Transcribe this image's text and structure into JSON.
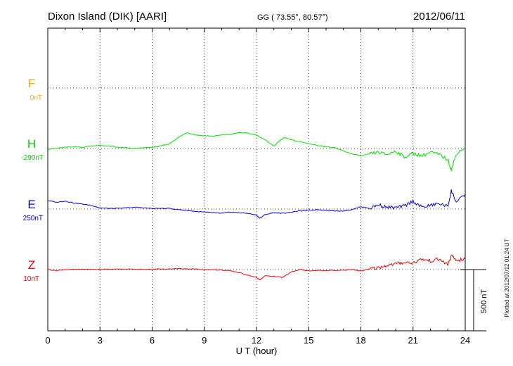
{
  "header": {
    "station": "Dixon Island (DIK)  [AARI]",
    "coords": "GG ( 73.55°,  80.57°)",
    "date": "2012/06/11"
  },
  "footer": {
    "plotted": "Plotted at 2012/07/12 01:24 UT"
  },
  "chart_data": {
    "type": "line",
    "title": "Dixon Island (DIK)  [AARI]",
    "xlabel": "U T (hour)",
    "ylabel": "",
    "xlim": [
      0,
      24
    ],
    "x_ticks": [
      "0",
      "3",
      "6",
      "9",
      "12",
      "15",
      "18",
      "21",
      "24"
    ],
    "grid": true,
    "scale_label": "500 nT",
    "series": [
      {
        "name": "F",
        "offset": "0nT",
        "color": "#ffa500",
        "points": []
      },
      {
        "name": "H",
        "offset": "-290nT",
        "color": "#00e000",
        "points": [
          [
            0,
            -5
          ],
          [
            0.5,
            0
          ],
          [
            1,
            10
          ],
          [
            1.5,
            15
          ],
          [
            2,
            10
          ],
          [
            2.5,
            20
          ],
          [
            3,
            25
          ],
          [
            3.5,
            20
          ],
          [
            4,
            10
          ],
          [
            4.5,
            5
          ],
          [
            5,
            0
          ],
          [
            5.5,
            5
          ],
          [
            6,
            10
          ],
          [
            6.5,
            20
          ],
          [
            7,
            40
          ],
          [
            7.5,
            90
          ],
          [
            8,
            130
          ],
          [
            8.5,
            110
          ],
          [
            9,
            105
          ],
          [
            9.5,
            100
          ],
          [
            10,
            110
          ],
          [
            10.5,
            115
          ],
          [
            11,
            130
          ],
          [
            11.5,
            125
          ],
          [
            12,
            110
          ],
          [
            12.5,
            70
          ],
          [
            13,
            20
          ],
          [
            13.3,
            60
          ],
          [
            13.6,
            90
          ],
          [
            14,
            70
          ],
          [
            14.5,
            55
          ],
          [
            15,
            40
          ],
          [
            15.5,
            25
          ],
          [
            16,
            15
          ],
          [
            16.5,
            5
          ],
          [
            17,
            -20
          ],
          [
            17.5,
            -45
          ],
          [
            18,
            -60
          ],
          [
            18.5,
            -45
          ],
          [
            19,
            -30
          ],
          [
            19.5,
            -50
          ],
          [
            20,
            -20
          ],
          [
            20.5,
            -70
          ],
          [
            21,
            -40
          ],
          [
            21.5,
            -60
          ],
          [
            22,
            -30
          ],
          [
            22.5,
            -50
          ],
          [
            23,
            -90
          ],
          [
            23.2,
            -175
          ],
          [
            23.5,
            -40
          ],
          [
            24,
            10
          ]
        ]
      },
      {
        "name": "E",
        "offset": "250nT",
        "color": "#0000dd",
        "points": [
          [
            0,
            70
          ],
          [
            0.5,
            55
          ],
          [
            1,
            65
          ],
          [
            1.5,
            50
          ],
          [
            2,
            40
          ],
          [
            2.5,
            30
          ],
          [
            3,
            10
          ],
          [
            3.5,
            5
          ],
          [
            4,
            5
          ],
          [
            5,
            15
          ],
          [
            5.5,
            10
          ],
          [
            6,
            5
          ],
          [
            7,
            5
          ],
          [
            7.5,
            -5
          ],
          [
            8,
            -10
          ],
          [
            8.5,
            -20
          ],
          [
            9,
            -25
          ],
          [
            9.5,
            -30
          ],
          [
            10,
            -35
          ],
          [
            10.5,
            -25
          ],
          [
            11,
            -30
          ],
          [
            11.5,
            -35
          ],
          [
            12,
            -50
          ],
          [
            12.2,
            -75
          ],
          [
            12.5,
            -45
          ],
          [
            13,
            -30
          ],
          [
            13.5,
            -35
          ],
          [
            14,
            -25
          ],
          [
            14.5,
            -15
          ],
          [
            15,
            -10
          ],
          [
            15.5,
            -5
          ],
          [
            16,
            -10
          ],
          [
            16.5,
            -15
          ],
          [
            17,
            -15
          ],
          [
            17.5,
            -5
          ],
          [
            18,
            20
          ],
          [
            18.5,
            5
          ],
          [
            19,
            35
          ],
          [
            19.5,
            15
          ],
          [
            20,
            10
          ],
          [
            20.5,
            25
          ],
          [
            21,
            65
          ],
          [
            21.5,
            15
          ],
          [
            22,
            30
          ],
          [
            22.5,
            45
          ],
          [
            23,
            20
          ],
          [
            23.2,
            150
          ],
          [
            23.5,
            55
          ],
          [
            24,
            120
          ]
        ]
      },
      {
        "name": "Z",
        "offset": "10nT",
        "color": "#ee0000",
        "points": [
          [
            0,
            0
          ],
          [
            0.5,
            -8
          ],
          [
            1,
            0
          ],
          [
            2,
            2
          ],
          [
            3,
            2
          ],
          [
            4,
            4
          ],
          [
            5,
            3
          ],
          [
            6,
            3
          ],
          [
            7,
            4
          ],
          [
            7.5,
            8
          ],
          [
            8,
            6
          ],
          [
            8.5,
            4
          ],
          [
            9,
            0
          ],
          [
            10,
            -5
          ],
          [
            10.5,
            -10
          ],
          [
            11,
            -25
          ],
          [
            11.5,
            -45
          ],
          [
            12,
            -65
          ],
          [
            12.2,
            -85
          ],
          [
            12.5,
            -50
          ],
          [
            13,
            -55
          ],
          [
            13.5,
            -65
          ],
          [
            14,
            -20
          ],
          [
            14.5,
            0
          ],
          [
            15,
            -10
          ],
          [
            16,
            -8
          ],
          [
            17,
            -5
          ],
          [
            17.5,
            0
          ],
          [
            18,
            -12
          ],
          [
            18.5,
            5
          ],
          [
            19,
            15
          ],
          [
            19.5,
            35
          ],
          [
            20,
            45
          ],
          [
            20.5,
            60
          ],
          [
            21,
            55
          ],
          [
            21.5,
            85
          ],
          [
            22,
            70
          ],
          [
            22.5,
            85
          ],
          [
            23,
            40
          ],
          [
            23.2,
            110
          ],
          [
            23.5,
            75
          ],
          [
            24,
            85
          ]
        ]
      }
    ]
  }
}
